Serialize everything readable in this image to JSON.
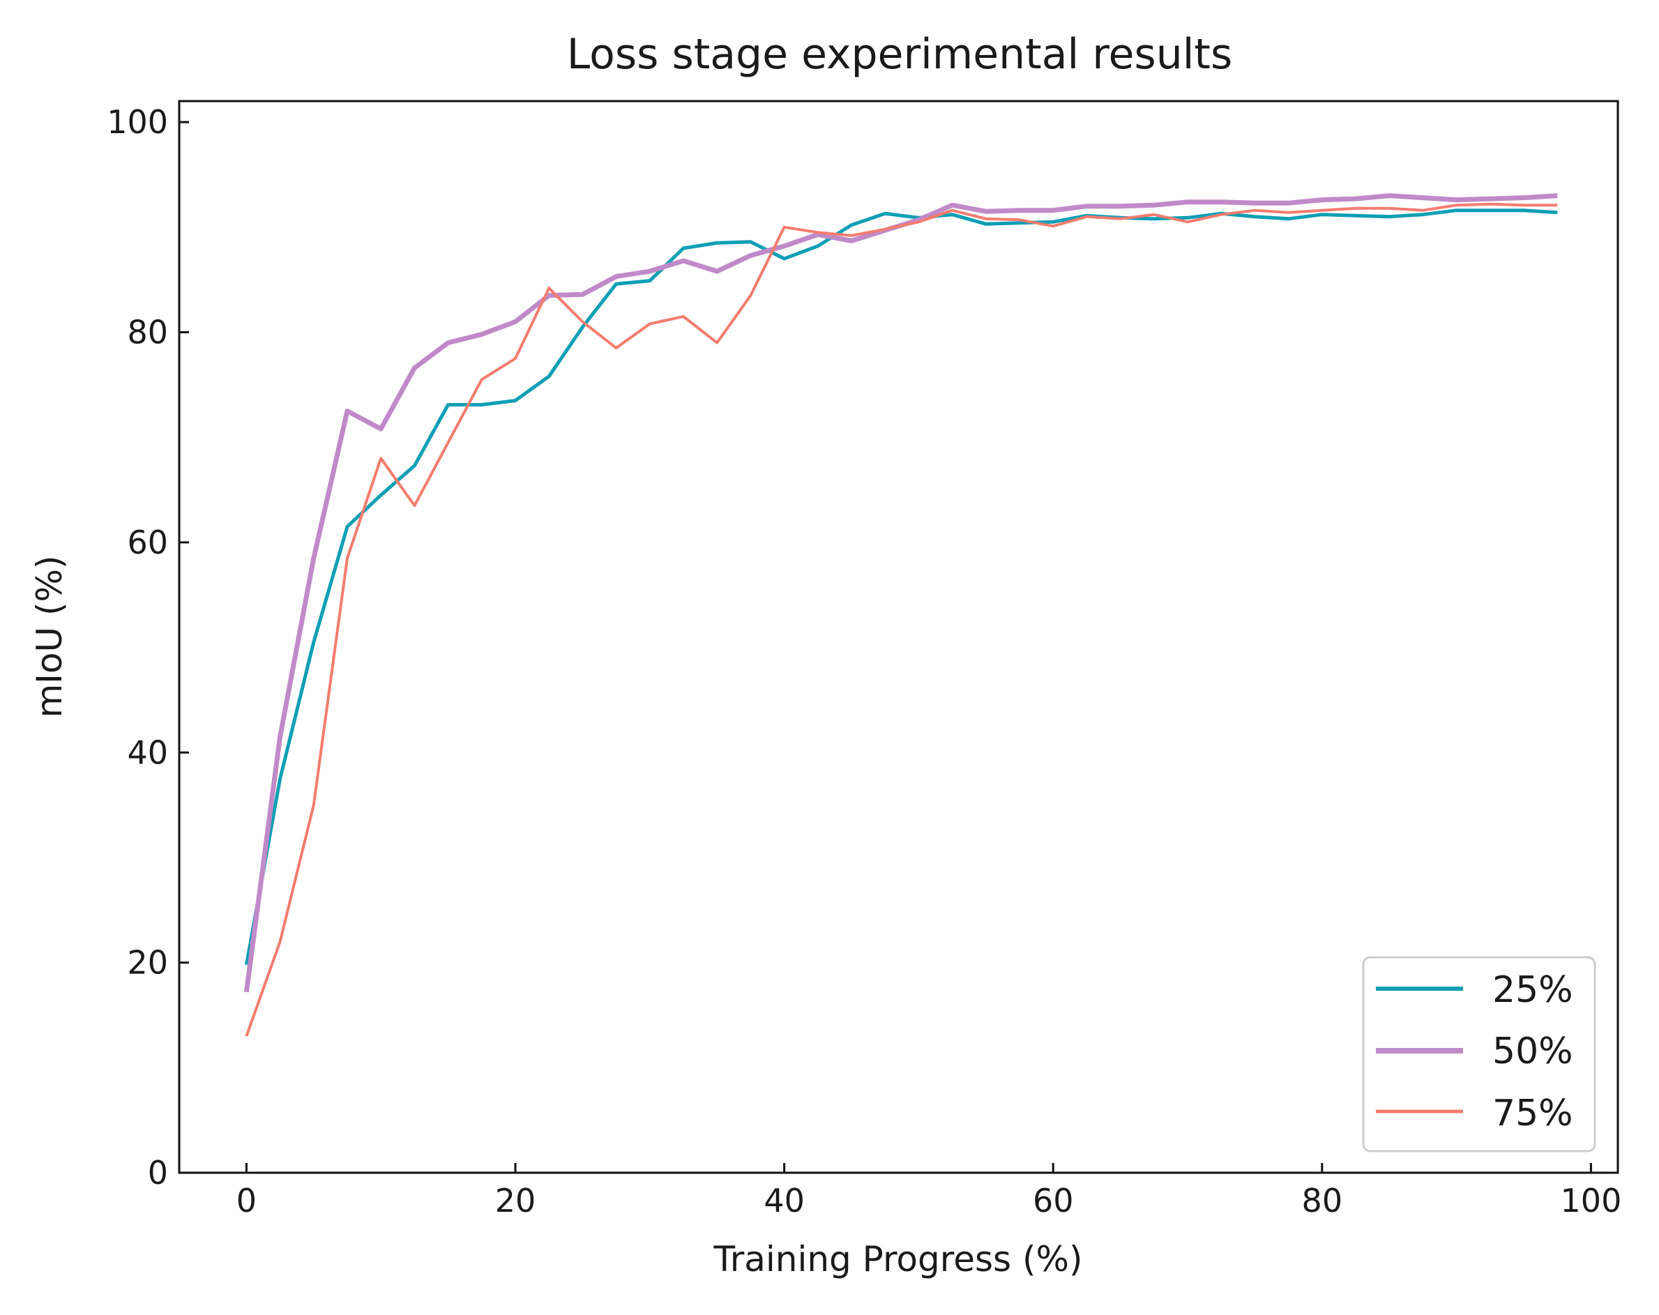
{
  "chart_data": {
    "type": "line",
    "title": "Loss stage experimental results",
    "xlabel": "Training Progress (%)",
    "ylabel": "mIoU (%)",
    "xlim": [
      -5,
      102
    ],
    "ylim": [
      0,
      102
    ],
    "xticks": [
      0,
      20,
      40,
      60,
      80,
      100
    ],
    "yticks": [
      0,
      20,
      40,
      60,
      80,
      100
    ],
    "xtick_labels": [
      "0",
      "20",
      "40",
      "60",
      "80",
      "100"
    ],
    "ytick_labels": [
      "0",
      "20",
      "40",
      "60",
      "80",
      "100"
    ],
    "grid": false,
    "legend_position": "lower-right",
    "x": [
      0,
      2.5,
      5,
      7.5,
      10,
      12.5,
      15,
      17.5,
      20,
      22.5,
      25,
      27.5,
      30,
      32.5,
      35,
      37.5,
      40,
      42.5,
      45,
      47.5,
      50,
      52.5,
      55,
      57.5,
      60,
      62.5,
      65,
      67.5,
      70,
      72.5,
      75,
      77.5,
      80,
      82.5,
      85,
      87.5,
      90,
      92.5,
      95,
      97.5
    ],
    "series": [
      {
        "name": "25%",
        "color": "#0e9fb5",
        "values": [
          19.8,
          37.5,
          50.5,
          61.5,
          64.5,
          67.3,
          73.1,
          73.1,
          73.5,
          75.8,
          80.5,
          84.6,
          84.9,
          88.0,
          88.5,
          88.6,
          87.0,
          88.2,
          90.2,
          91.3,
          90.9,
          91.2,
          90.3,
          90.4,
          90.5,
          91.1,
          90.9,
          90.8,
          90.9,
          91.3,
          91.0,
          90.8,
          91.2,
          91.1,
          91.0,
          91.2,
          91.6,
          91.6,
          91.6,
          91.4
        ]
      },
      {
        "name": "50%",
        "color": "#c08ac9",
        "values": [
          17.2,
          41.5,
          58.5,
          72.5,
          70.8,
          76.6,
          79.0,
          79.8,
          81.0,
          83.5,
          83.6,
          85.3,
          85.8,
          86.8,
          85.8,
          87.3,
          88.2,
          89.3,
          88.7,
          89.7,
          90.7,
          92.1,
          91.5,
          91.6,
          91.6,
          92.0,
          92.0,
          92.1,
          92.4,
          92.4,
          92.3,
          92.3,
          92.6,
          92.7,
          93.0,
          92.8,
          92.6,
          92.7,
          92.8,
          93.0
        ]
      },
      {
        "name": "75%",
        "color": "#f47c6e",
        "values": [
          13.0,
          22.0,
          35.0,
          58.5,
          68.0,
          63.5,
          69.5,
          75.5,
          77.5,
          84.2,
          81.0,
          78.5,
          80.8,
          81.5,
          79.0,
          83.5,
          90.0,
          89.5,
          89.2,
          89.8,
          90.5,
          91.6,
          90.8,
          90.7,
          90.1,
          91.0,
          90.8,
          91.2,
          90.5,
          91.2,
          91.6,
          91.4,
          91.6,
          91.8,
          91.8,
          91.6,
          92.1,
          92.2,
          92.1,
          92.1
        ]
      }
    ]
  }
}
